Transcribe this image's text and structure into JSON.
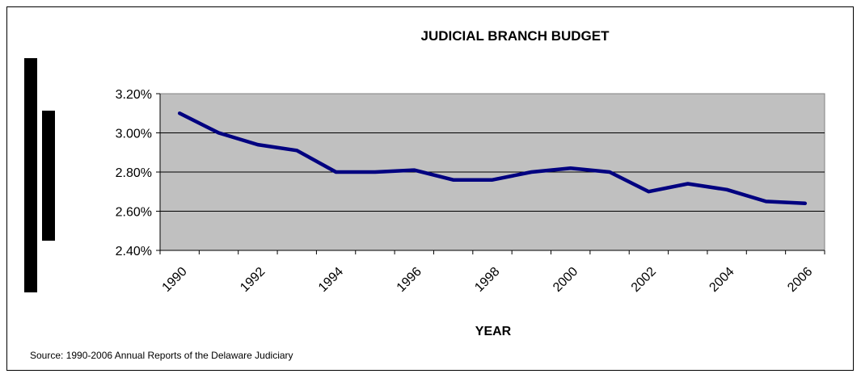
{
  "chart_data": {
    "type": "line",
    "title": "JUDICIAL BRANCH BUDGET",
    "xlabel": "YEAR",
    "ylabel": "",
    "x": [
      1990,
      1991,
      1992,
      1993,
      1994,
      1995,
      1996,
      1997,
      1998,
      1999,
      2000,
      2001,
      2002,
      2003,
      2004,
      2005,
      2006
    ],
    "xtick_labels": [
      "1990",
      "1992",
      "1994",
      "1996",
      "1998",
      "2000",
      "2002",
      "2004",
      "2006"
    ],
    "ytick_labels": [
      "3.20%",
      "3.00%",
      "2.80%",
      "2.60%",
      "2.40%"
    ],
    "ylim": [
      2.4,
      3.2
    ],
    "grid": true,
    "legend": "none",
    "series": [
      {
        "values": [
          3.1,
          3.0,
          2.94,
          2.91,
          2.8,
          2.8,
          2.81,
          2.76,
          2.76,
          2.8,
          2.82,
          2.8,
          2.7,
          2.74,
          2.71,
          2.65,
          2.64
        ],
        "color": "#000080"
      }
    ],
    "plot_background": "#c0c0c0"
  },
  "footer": {
    "source": "Source: 1990-2006 Annual Reports of the Delaware Judiciary"
  }
}
